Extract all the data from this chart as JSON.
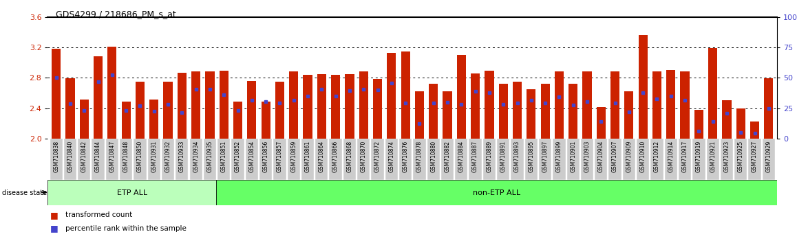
{
  "title": "GDS4299 / 218686_PM_s_at",
  "samples": [
    "GSM710838",
    "GSM710840",
    "GSM710842",
    "GSM710844",
    "GSM710847",
    "GSM710848",
    "GSM710850",
    "GSM710931",
    "GSM710932",
    "GSM710933",
    "GSM710934",
    "GSM710935",
    "GSM710851",
    "GSM710852",
    "GSM710854",
    "GSM710856",
    "GSM710857",
    "GSM710859",
    "GSM710861",
    "GSM710864",
    "GSM710866",
    "GSM710868",
    "GSM710870",
    "GSM710872",
    "GSM710874",
    "GSM710876",
    "GSM710878",
    "GSM710880",
    "GSM710882",
    "GSM710884",
    "GSM710887",
    "GSM710889",
    "GSM710891",
    "GSM710893",
    "GSM710895",
    "GSM710897",
    "GSM710899",
    "GSM710901",
    "GSM710903",
    "GSM710904",
    "GSM710907",
    "GSM710909",
    "GSM710910",
    "GSM710912",
    "GSM710914",
    "GSM710917",
    "GSM710919",
    "GSM710921",
    "GSM710923",
    "GSM710925",
    "GSM710927",
    "GSM710929"
  ],
  "bar_heights": [
    3.18,
    2.79,
    2.51,
    3.08,
    3.21,
    2.49,
    2.75,
    2.51,
    2.75,
    2.87,
    2.88,
    2.88,
    2.89,
    2.49,
    2.76,
    2.49,
    2.75,
    2.88,
    2.84,
    2.85,
    2.84,
    2.85,
    2.88,
    2.78,
    3.13,
    3.15,
    2.62,
    2.72,
    2.62,
    3.1,
    2.86,
    2.89,
    2.72,
    2.75,
    2.65,
    2.72,
    2.88,
    2.72,
    2.88,
    2.41,
    2.88,
    2.62,
    3.36,
    2.88,
    2.9,
    2.88,
    2.38,
    3.19,
    2.5,
    2.4,
    2.22,
    2.79
  ],
  "percentile_ranks": [
    2.8,
    2.46,
    2.37,
    2.75,
    2.84,
    2.37,
    2.43,
    2.36,
    2.45,
    2.34,
    2.65,
    2.65,
    2.58,
    2.37,
    2.5,
    2.49,
    2.47,
    2.5,
    2.56,
    2.65,
    2.56,
    2.63,
    2.65,
    2.64,
    2.73,
    2.47,
    2.2,
    2.47,
    2.48,
    2.45,
    2.62,
    2.6,
    2.45,
    2.47,
    2.5,
    2.47,
    2.55,
    2.44,
    2.49,
    2.22,
    2.47,
    2.35,
    2.6,
    2.52,
    2.56,
    2.5,
    2.1,
    2.22,
    2.33,
    2.08,
    2.07,
    2.4
  ],
  "etp_count": 12,
  "ylim_left": [
    2.0,
    3.6
  ],
  "ylim_right": [
    0,
    100
  ],
  "yticks_left": [
    2.0,
    2.4,
    2.8,
    3.2,
    3.6
  ],
  "yticks_right": [
    0,
    25,
    50,
    75,
    100
  ],
  "bar_color": "#CC2200",
  "marker_color": "#4444CC",
  "etp_label": "ETP ALL",
  "non_etp_label": "non-ETP ALL",
  "disease_state_label": "disease state",
  "legend_bar_label": "transformed count",
  "legend_marker_label": "percentile rank within the sample",
  "etp_bg_color": "#BBFFBB",
  "non_etp_bg_color": "#66FF66",
  "tick_label_bg": "#CCCCCC",
  "right_axis_color": "#4444CC",
  "left_axis_color": "#CC2200"
}
